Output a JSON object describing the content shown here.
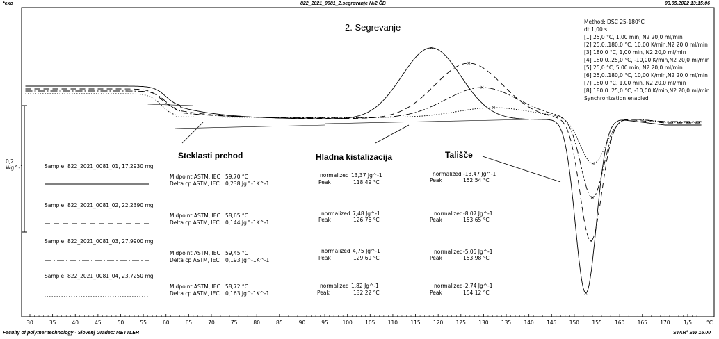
{
  "header": {
    "left": "*exo",
    "center": "822_2021_0081_2.segrevanje №2 ČB",
    "right": "03.05.2022 13:15:06"
  },
  "footer": {
    "left": "Faculty of polymer technology - Slovenj Gradec: METTLER",
    "right": "STAR° SW 15.00"
  },
  "colors": {
    "frame": "#000000",
    "curve": "#000000"
  },
  "chart_data": {
    "type": "line",
    "title": "2. Segrevanje",
    "xlabel": "°C",
    "x_ticks": [
      30,
      35,
      40,
      45,
      50,
      55,
      60,
      65,
      70,
      75,
      80,
      85,
      90,
      95,
      100,
      105,
      110,
      115,
      120,
      125,
      130,
      135,
      140,
      145,
      150,
      155,
      160,
      165,
      170,
      175
    ],
    "x_tick_labels": [
      "30",
      "35",
      "40",
      "45",
      "50",
      "55",
      "60",
      "65",
      "70",
      "75",
      "80",
      "85",
      "90",
      "95",
      "100",
      "105",
      "110",
      "115",
      "120",
      "125",
      "130",
      "135",
      "140",
      "145",
      "150",
      "155",
      "160",
      "165",
      "170",
      "1/5"
    ],
    "xlim": [
      28,
      180
    ],
    "y_scale_label": [
      "0,2",
      "Wg^-1"
    ],
    "method": {
      "title": "Method: DSC 25-180°C",
      "dt": "dt 1,00 s",
      "steps": [
        "[1] 25,0 °C, 1,00 min,  N2 20,0 ml/min",
        "[2] 25,0..180,0 °C, 10,00 K/min,N2 20,0 ml/min",
        "[3] 180,0 °C, 1,00 min,  N2 20,0 ml/min",
        "[4] 180,0..25,0 °C, -10,00 K/min,N2 20,0 ml/min",
        "[5] 25,0 °C, 5,00 min,  N2 20,0 ml/min",
        "[6] 25,0..180,0 °C, 10,00 K/min,N2 20,0 ml/min",
        "[7] 180,0 °C, 1,00 min,  N2 20,0 ml/min",
        "[8] 180,0..25,0 °C, -10,00 K/min,N2 20,0 ml/min"
      ],
      "sync": "Synchronization enabled"
    },
    "annotations": {
      "glass": "Steklasti prehod",
      "cold": "Hladna kistalizacija",
      "melt": "Tališče"
    },
    "samples": [
      {
        "name": "Sample: 822_2021_0081_01, 17,2930 mg",
        "line_style": "solid",
        "midpoint_label": "Midpoint ASTM, IEC",
        "midpoint": "59,70 °C",
        "delta_label": "Delta cp ASTM, IEC",
        "delta": "0,238 Jg^-1K^-1",
        "cold_norm": "13,37 Jg^-1",
        "cold_peak": "118,49 °C",
        "melt_norm": "-13,47 Jg^-1",
        "melt_peak": "152,54 °C"
      },
      {
        "name": "Sample: 822_2021_0081_02, 22,2390 mg",
        "line_style": "dashed",
        "midpoint_label": "Midpoint ASTM, IEC",
        "midpoint": "58,65 °C",
        "delta_label": "Delta cp ASTM, IEC",
        "delta": "0,144 Jg^-1K^-1",
        "cold_norm": "7,48 Jg^-1",
        "cold_peak": "126,76 °C",
        "melt_norm": "-8,07 Jg^-1",
        "melt_peak": "153,65 °C"
      },
      {
        "name": "Sample: 822_2021_0081_03, 27,9900 mg",
        "line_style": "dashdot",
        "midpoint_label": "Midpoint ASTM, IEC",
        "midpoint": "59,45 °C",
        "delta_label": "Delta cp ASTM, IEC",
        "delta": "0,193 Jg^-1K^-1",
        "cold_norm": "4,75 Jg^-1",
        "cold_peak": "129,69 °C",
        "melt_norm": "-5,05 Jg^-1",
        "melt_peak": "153,98 °C"
      },
      {
        "name": "Sample: 822_2021_0081_04, 23,7250 mg",
        "line_style": "dotted",
        "midpoint_label": "Midpoint ASTM, IEC",
        "midpoint": "58,72 °C",
        "delta_label": "Delta cp ASTM, IEC",
        "delta": "0,163 Jg^-1K^-1",
        "cold_norm": "1,82 Jg^-1",
        "cold_peak": "132,22 °C",
        "melt_norm": "-2,74 Jg^-1",
        "melt_peak": "154,12 °C"
      }
    ],
    "labels": {
      "normalized": "normalized",
      "peak": "Peak"
    }
  }
}
